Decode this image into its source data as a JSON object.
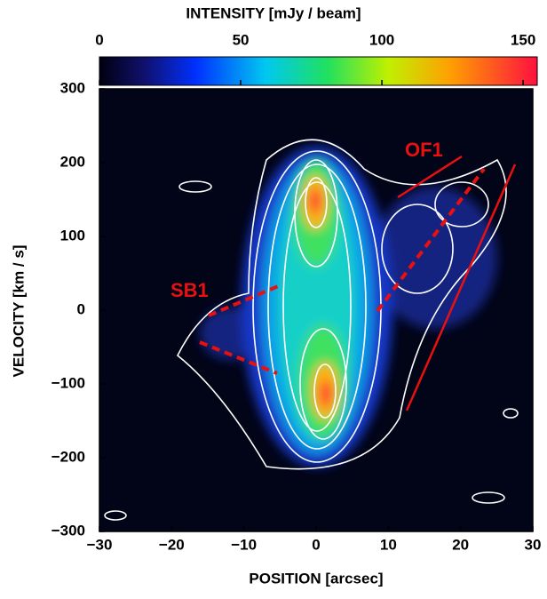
{
  "chart_data": {
    "type": "image",
    "xlabel": "POSITION  [arcsec]",
    "ylabel": "VELOCITY  [km / s]",
    "xlim": [
      -30,
      30
    ],
    "ylim": [
      -300,
      300
    ],
    "xticks": [
      {
        "value": -30,
        "label": "−30"
      },
      {
        "value": -20,
        "label": "−20"
      },
      {
        "value": -10,
        "label": "−10"
      },
      0,
      10,
      20,
      30
    ],
    "yticks": [
      {
        "value": -300,
        "label": "−300"
      },
      {
        "value": -200,
        "label": "−200"
      },
      {
        "value": -100,
        "label": "−100"
      },
      0,
      100,
      200,
      300
    ],
    "colorbar": {
      "label": "INTENSITY  [mJy / beam]",
      "lim": [
        0,
        155
      ],
      "ticks": [
        0,
        50,
        100,
        150
      ]
    },
    "annotations": [
      "OF1",
      "SB1"
    ]
  }
}
